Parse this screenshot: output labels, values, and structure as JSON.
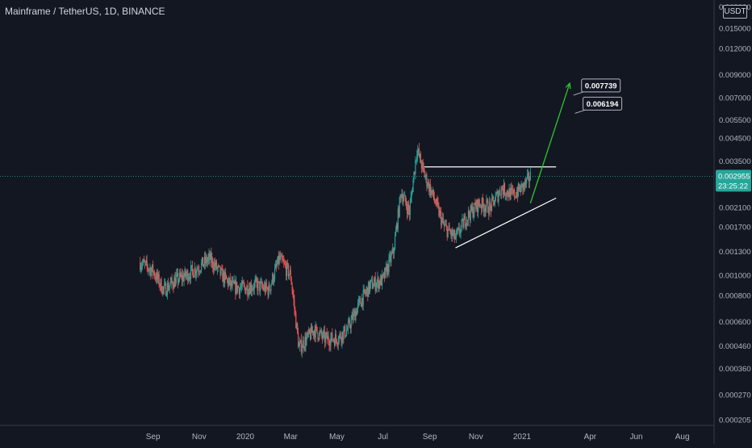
{
  "header": {
    "title": "Mainframe / TetherUS, 1D, BINANCE",
    "currency": "USDT"
  },
  "chart_data": {
    "type": "candlestick",
    "title": "Mainframe / TetherUS, 1D, BINANCE",
    "y_scale": "log",
    "ylim": [
      0.0002,
      0.019
    ],
    "y_ticks": [
      "0.019000",
      "0.015000",
      "0.012000",
      "0.009000",
      "0.007000",
      "0.005500",
      "0.004500",
      "0.003500",
      "0.002700",
      "0.002100",
      "0.001700",
      "0.001300",
      "0.001000",
      "0.000800",
      "0.000600",
      "0.000460",
      "0.000360",
      "0.000270",
      "0.000205"
    ],
    "x_ticks": [
      "Sep",
      "Nov",
      "2020",
      "Mar",
      "May",
      "Jul",
      "Sep",
      "Nov",
      "2021",
      "Apr",
      "Jun",
      "Aug"
    ],
    "candle_color_up": "#26a69a",
    "candle_color_down": "#ef5350",
    "price_series": [
      {
        "date": "2019-08-15",
        "close": 0.00115
      },
      {
        "date": "2019-09-01",
        "close": 0.00105
      },
      {
        "date": "2019-09-15",
        "close": 0.00085
      },
      {
        "date": "2019-10-01",
        "close": 0.00095
      },
      {
        "date": "2019-10-15",
        "close": 0.001
      },
      {
        "date": "2019-11-01",
        "close": 0.0011
      },
      {
        "date": "2019-11-15",
        "close": 0.0012
      },
      {
        "date": "2019-12-01",
        "close": 0.001
      },
      {
        "date": "2019-12-15",
        "close": 0.00088
      },
      {
        "date": "2020-01-01",
        "close": 0.00087
      },
      {
        "date": "2020-01-15",
        "close": 0.0009
      },
      {
        "date": "2020-02-01",
        "close": 0.00085
      },
      {
        "date": "2020-02-15",
        "close": 0.0012
      },
      {
        "date": "2020-03-01",
        "close": 0.001
      },
      {
        "date": "2020-03-12",
        "close": 0.00045
      },
      {
        "date": "2020-04-01",
        "close": 0.00055
      },
      {
        "date": "2020-04-15",
        "close": 0.0005
      },
      {
        "date": "2020-05-01",
        "close": 0.0005
      },
      {
        "date": "2020-05-15",
        "close": 0.00055
      },
      {
        "date": "2020-06-01",
        "close": 0.00075
      },
      {
        "date": "2020-06-15",
        "close": 0.0009
      },
      {
        "date": "2020-07-01",
        "close": 0.00095
      },
      {
        "date": "2020-07-15",
        "close": 0.0013
      },
      {
        "date": "2020-07-25",
        "close": 0.0025
      },
      {
        "date": "2020-08-05",
        "close": 0.002
      },
      {
        "date": "2020-08-15",
        "close": 0.004
      },
      {
        "date": "2020-08-25",
        "close": 0.003
      },
      {
        "date": "2020-09-05",
        "close": 0.0024
      },
      {
        "date": "2020-09-20",
        "close": 0.0017
      },
      {
        "date": "2020-10-05",
        "close": 0.0015
      },
      {
        "date": "2020-10-20",
        "close": 0.0019
      },
      {
        "date": "2020-11-05",
        "close": 0.0022
      },
      {
        "date": "2020-11-20",
        "close": 0.0021
      },
      {
        "date": "2020-12-05",
        "close": 0.0026
      },
      {
        "date": "2020-12-20",
        "close": 0.0024
      },
      {
        "date": "2021-01-05",
        "close": 0.0027
      },
      {
        "date": "2021-01-12",
        "close": 0.00296
      }
    ],
    "current_price": {
      "label": "0.002955",
      "timer": "23:25:22",
      "color": "#26a69a"
    },
    "annotations": {
      "target_labels": [
        "0.007739",
        "0.006194"
      ],
      "resistance_line": {
        "price": 0.00328,
        "from": "2020-08-25",
        "to": "2021-02-15"
      },
      "support_line": {
        "from": {
          "date": "2020-10-05",
          "price": 0.00135
        },
        "to": {
          "date": "2021-02-15",
          "price": 0.00233
        }
      },
      "projection_arrow": {
        "from": {
          "date": "2021-01-12",
          "price": 0.0022
        },
        "to": {
          "date": "2021-03-05",
          "price": 0.0082
        },
        "color": "#2ec52e"
      }
    },
    "grid": false,
    "legend": "none"
  }
}
